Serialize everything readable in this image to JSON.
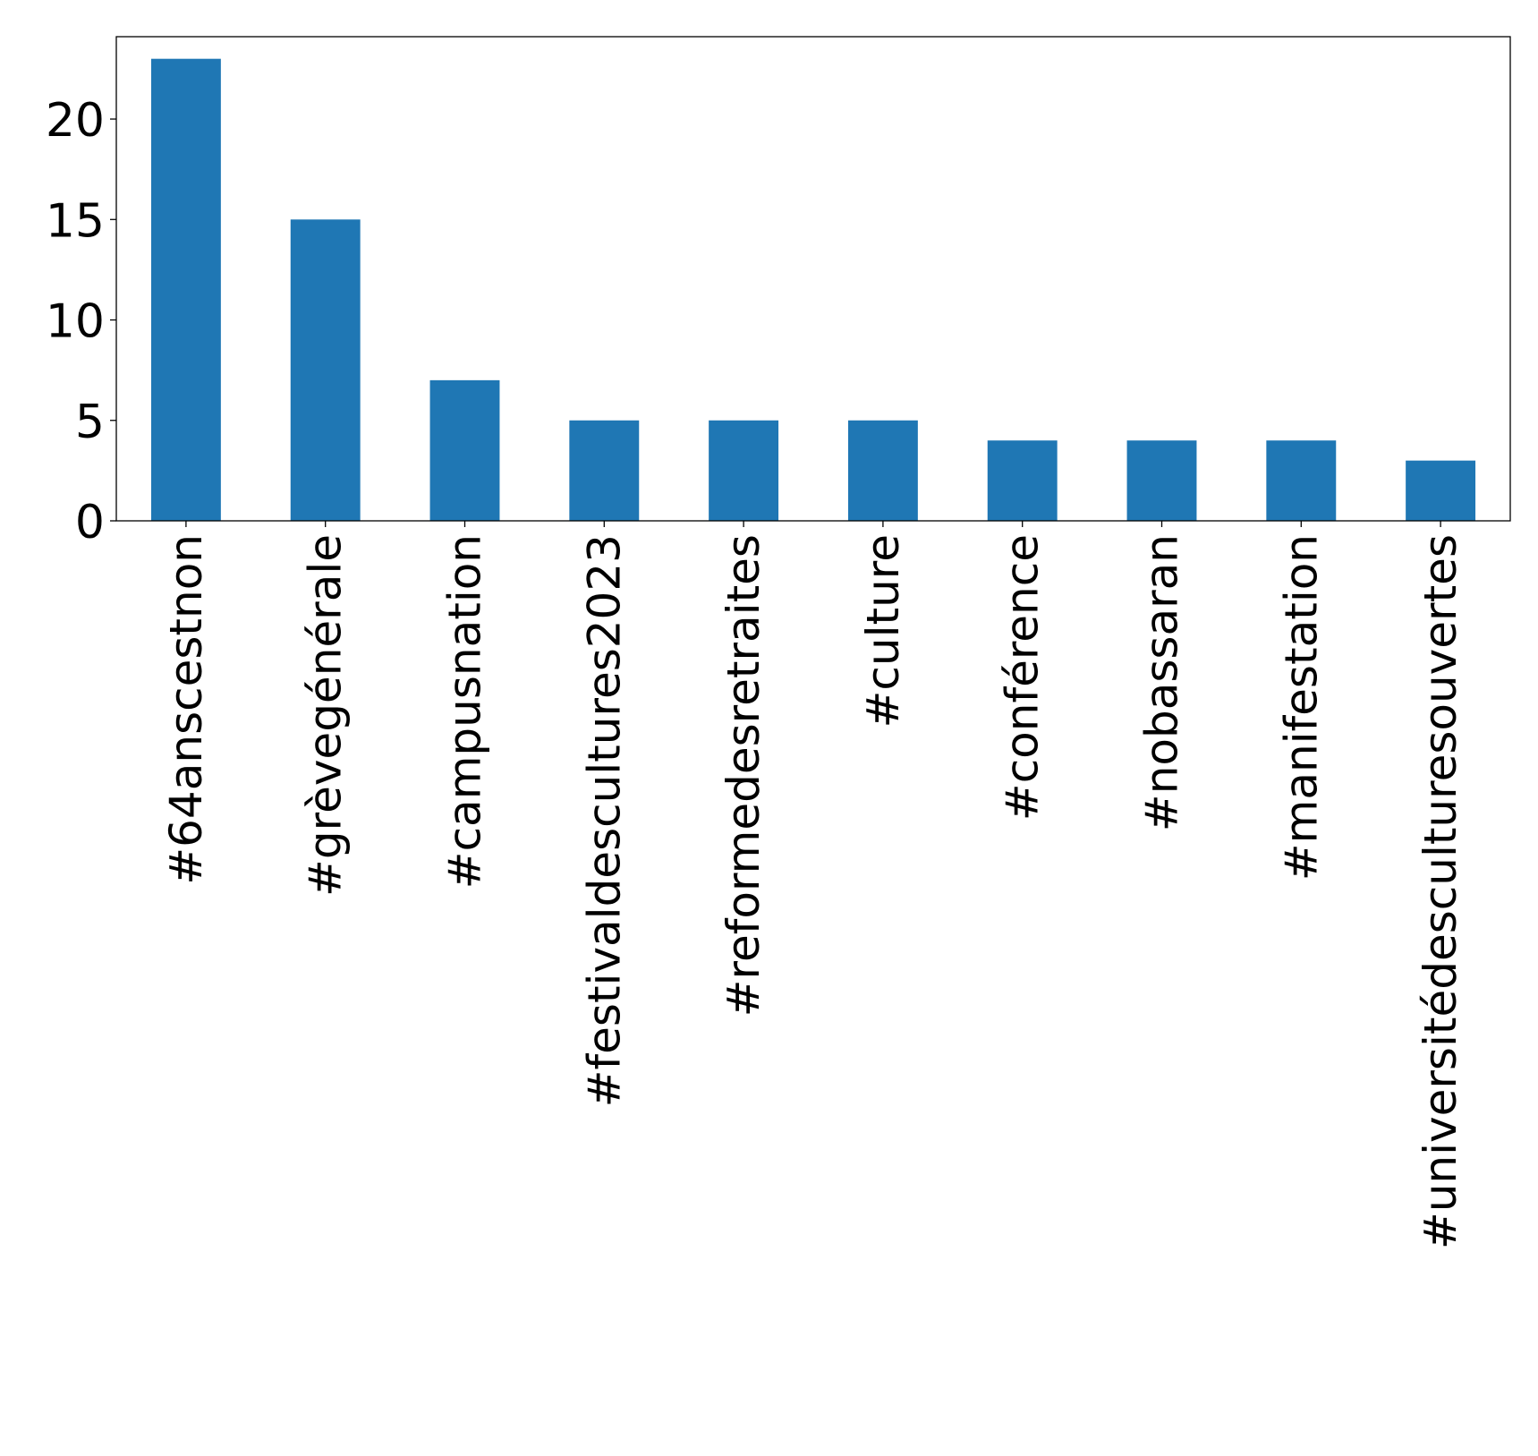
{
  "chart_data": {
    "type": "bar",
    "categories": [
      "#64anscestnon",
      "#grèvegénérale",
      "#campusnation",
      "#festivaldescultures2023",
      "#reformedesretraites",
      "#culture",
      "#conférence",
      "#nobassaran",
      "#manifestation",
      "#universitédesculturesouvertes"
    ],
    "values": [
      23,
      15,
      7,
      5,
      5,
      5,
      4,
      4,
      4,
      3
    ],
    "yticks": [
      0,
      5,
      10,
      15,
      20
    ],
    "ylim": [
      0,
      24.1
    ],
    "title": "",
    "xlabel": "",
    "ylabel": "",
    "grid": false,
    "colors": {
      "bar": "#1f77b4",
      "axis": "#000000"
    }
  }
}
